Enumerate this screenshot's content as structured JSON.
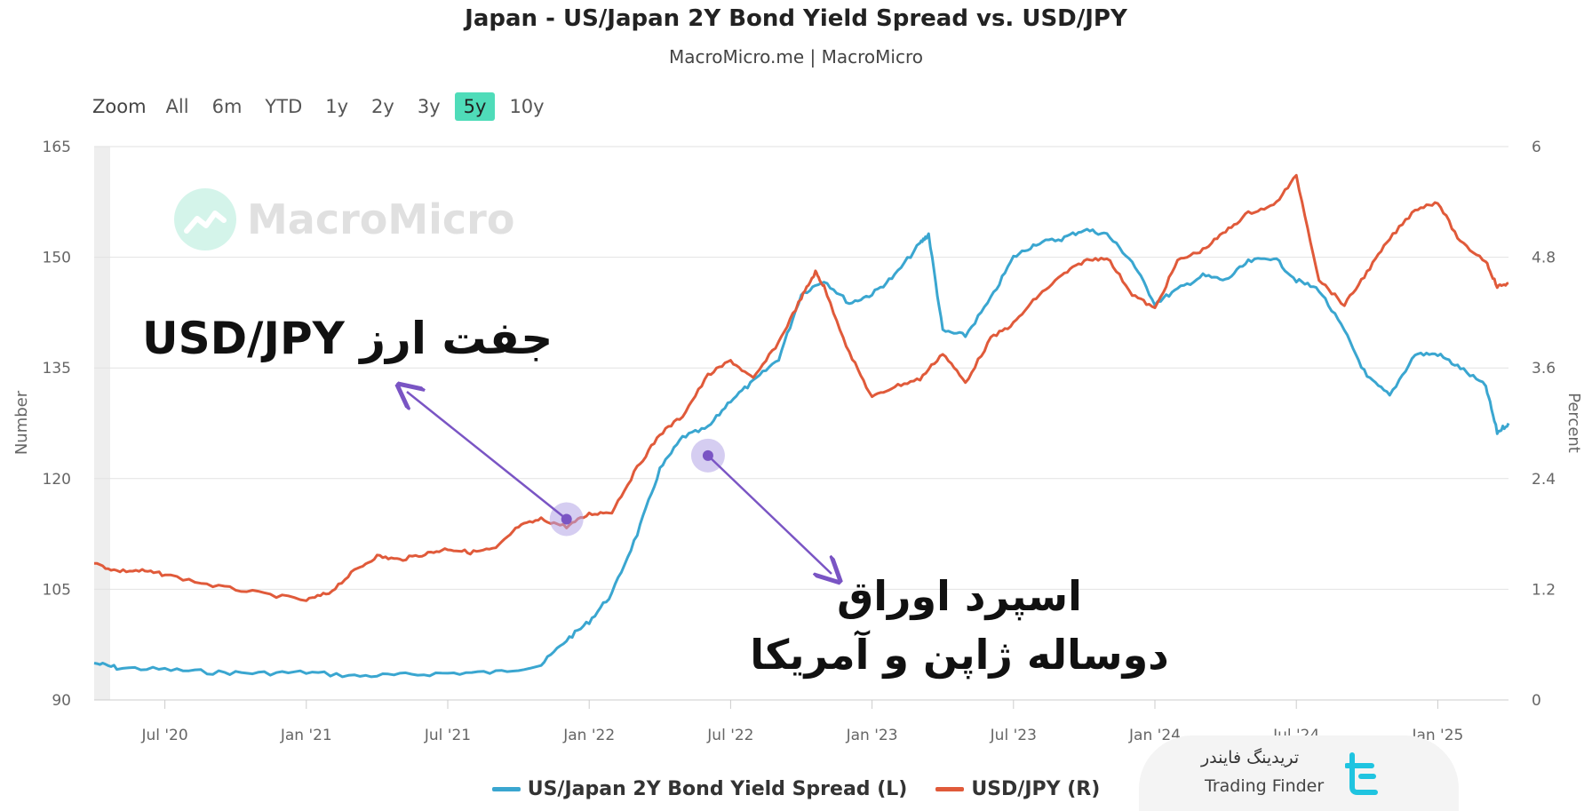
{
  "title": "Japan - US/Japan 2Y Bond Yield Spread vs. USD/JPY",
  "subtitle": "MacroMicro.me | MacroMicro",
  "zoom": {
    "label": "Zoom",
    "buttons": [
      "All",
      "6m",
      "YTD",
      "1y",
      "2y",
      "3y",
      "5y",
      "10y"
    ],
    "active": "5y",
    "active_color": "#4fdcb9"
  },
  "watermark": "MacroMicro",
  "annotations": {
    "fx_pair": "جفت ارز USD/JPY",
    "spread_line1": "اسپرد اوراق",
    "spread_line2": "دوساله ژاپن و آمریکا"
  },
  "branding": {
    "persian": "تریدینگ فایندر",
    "english": "Trading Finder"
  },
  "chart_data": {
    "type": "line",
    "title": "Japan - US/Japan 2Y Bond Yield Spread vs. USD/JPY",
    "ylabel_left": "Number",
    "ylabel_right": "Percent",
    "yaxis_left": {
      "range": [
        90,
        165
      ],
      "ticks": [
        "90",
        "105",
        "120",
        "135",
        "150",
        "165"
      ]
    },
    "yaxis_right": {
      "range": [
        0,
        6
      ],
      "ticks": [
        "0",
        "1.2",
        "2.4",
        "3.6",
        "4.8",
        "6"
      ]
    },
    "xaxis": {
      "start": 2020.25,
      "end": 2025.25
    },
    "x_ticks": [
      {
        "x": 2020.5,
        "label": "Jul '20"
      },
      {
        "x": 2021.0,
        "label": "Jan '21"
      },
      {
        "x": 2021.5,
        "label": "Jul '21"
      },
      {
        "x": 2022.0,
        "label": "Jan '22"
      },
      {
        "x": 2022.5,
        "label": "Jul '22"
      },
      {
        "x": 2023.0,
        "label": "Jan '23"
      },
      {
        "x": 2023.5,
        "label": "Jul '23"
      },
      {
        "x": 2024.0,
        "label": "Jan '24"
      },
      {
        "x": 2024.5,
        "label": "Jul '24"
      },
      {
        "x": 2025.0,
        "label": "Jan '25"
      }
    ],
    "series": [
      {
        "name": "US/Japan 2Y Bond Yield Spread (L)",
        "axis": "right",
        "color": "#3aa6d0",
        "points": [
          [
            2020.25,
            0.4
          ],
          [
            2020.33,
            0.35
          ],
          [
            2020.5,
            0.33
          ],
          [
            2020.67,
            0.3
          ],
          [
            2020.83,
            0.29
          ],
          [
            2021.0,
            0.3
          ],
          [
            2021.17,
            0.26
          ],
          [
            2021.33,
            0.27
          ],
          [
            2021.5,
            0.29
          ],
          [
            2021.67,
            0.3
          ],
          [
            2021.83,
            0.38
          ],
          [
            2021.92,
            0.65
          ],
          [
            2022.0,
            0.85
          ],
          [
            2022.08,
            1.15
          ],
          [
            2022.17,
            1.8
          ],
          [
            2022.25,
            2.5
          ],
          [
            2022.33,
            2.85
          ],
          [
            2022.42,
            2.95
          ],
          [
            2022.5,
            3.25
          ],
          [
            2022.58,
            3.45
          ],
          [
            2022.67,
            3.7
          ],
          [
            2022.75,
            4.4
          ],
          [
            2022.83,
            4.55
          ],
          [
            2022.92,
            4.3
          ],
          [
            2023.0,
            4.4
          ],
          [
            2023.08,
            4.6
          ],
          [
            2023.17,
            4.95
          ],
          [
            2023.2,
            5.05
          ],
          [
            2023.25,
            4.0
          ],
          [
            2023.33,
            3.95
          ],
          [
            2023.42,
            4.35
          ],
          [
            2023.5,
            4.8
          ],
          [
            2023.58,
            4.95
          ],
          [
            2023.67,
            5.0
          ],
          [
            2023.75,
            5.1
          ],
          [
            2023.83,
            5.05
          ],
          [
            2023.92,
            4.75
          ],
          [
            2024.0,
            4.3
          ],
          [
            2024.08,
            4.45
          ],
          [
            2024.17,
            4.6
          ],
          [
            2024.25,
            4.55
          ],
          [
            2024.33,
            4.75
          ],
          [
            2024.42,
            4.8
          ],
          [
            2024.5,
            4.55
          ],
          [
            2024.58,
            4.45
          ],
          [
            2024.67,
            4.0
          ],
          [
            2024.75,
            3.5
          ],
          [
            2024.83,
            3.3
          ],
          [
            2024.92,
            3.75
          ],
          [
            2025.0,
            3.75
          ],
          [
            2025.08,
            3.6
          ],
          [
            2025.17,
            3.4
          ],
          [
            2025.21,
            2.9
          ],
          [
            2025.25,
            3.0
          ]
        ]
      },
      {
        "name": "USD/JPY (R)",
        "axis": "left",
        "color": "#e05a3a",
        "points": [
          [
            2020.25,
            108.5
          ],
          [
            2020.33,
            107.5
          ],
          [
            2020.42,
            107.5
          ],
          [
            2020.5,
            107.0
          ],
          [
            2020.67,
            105.5
          ],
          [
            2020.83,
            104.5
          ],
          [
            2021.0,
            103.5
          ],
          [
            2021.08,
            104.5
          ],
          [
            2021.17,
            107.5
          ],
          [
            2021.25,
            109.5
          ],
          [
            2021.33,
            109.0
          ],
          [
            2021.42,
            109.8
          ],
          [
            2021.5,
            110.5
          ],
          [
            2021.58,
            110.0
          ],
          [
            2021.67,
            110.5
          ],
          [
            2021.75,
            113.5
          ],
          [
            2021.83,
            114.5
          ],
          [
            2021.92,
            113.5
          ],
          [
            2022.0,
            115.2
          ],
          [
            2022.08,
            115.5
          ],
          [
            2022.17,
            121.5
          ],
          [
            2022.25,
            126.0
          ],
          [
            2022.33,
            128.5
          ],
          [
            2022.42,
            134.0
          ],
          [
            2022.5,
            136.0
          ],
          [
            2022.58,
            133.5
          ],
          [
            2022.67,
            138.5
          ],
          [
            2022.75,
            144.5
          ],
          [
            2022.8,
            148.0
          ],
          [
            2022.83,
            146.0
          ],
          [
            2022.92,
            137.0
          ],
          [
            2023.0,
            131.0
          ],
          [
            2023.08,
            132.5
          ],
          [
            2023.17,
            133.5
          ],
          [
            2023.25,
            137.0
          ],
          [
            2023.33,
            133.0
          ],
          [
            2023.42,
            139.0
          ],
          [
            2023.5,
            141.0
          ],
          [
            2023.58,
            144.5
          ],
          [
            2023.67,
            147.5
          ],
          [
            2023.75,
            149.5
          ],
          [
            2023.83,
            150.0
          ],
          [
            2023.92,
            145.0
          ],
          [
            2024.0,
            143.0
          ],
          [
            2024.08,
            149.5
          ],
          [
            2024.17,
            151.0
          ],
          [
            2024.25,
            153.5
          ],
          [
            2024.33,
            156.0
          ],
          [
            2024.42,
            157.0
          ],
          [
            2024.5,
            161.0
          ],
          [
            2024.58,
            147.0
          ],
          [
            2024.67,
            143.5
          ],
          [
            2024.75,
            148.0
          ],
          [
            2024.83,
            152.5
          ],
          [
            2024.92,
            156.5
          ],
          [
            2025.0,
            157.5
          ],
          [
            2025.08,
            152.0
          ],
          [
            2025.17,
            149.5
          ],
          [
            2025.21,
            146.0
          ],
          [
            2025.25,
            146.5
          ]
        ]
      }
    ]
  }
}
